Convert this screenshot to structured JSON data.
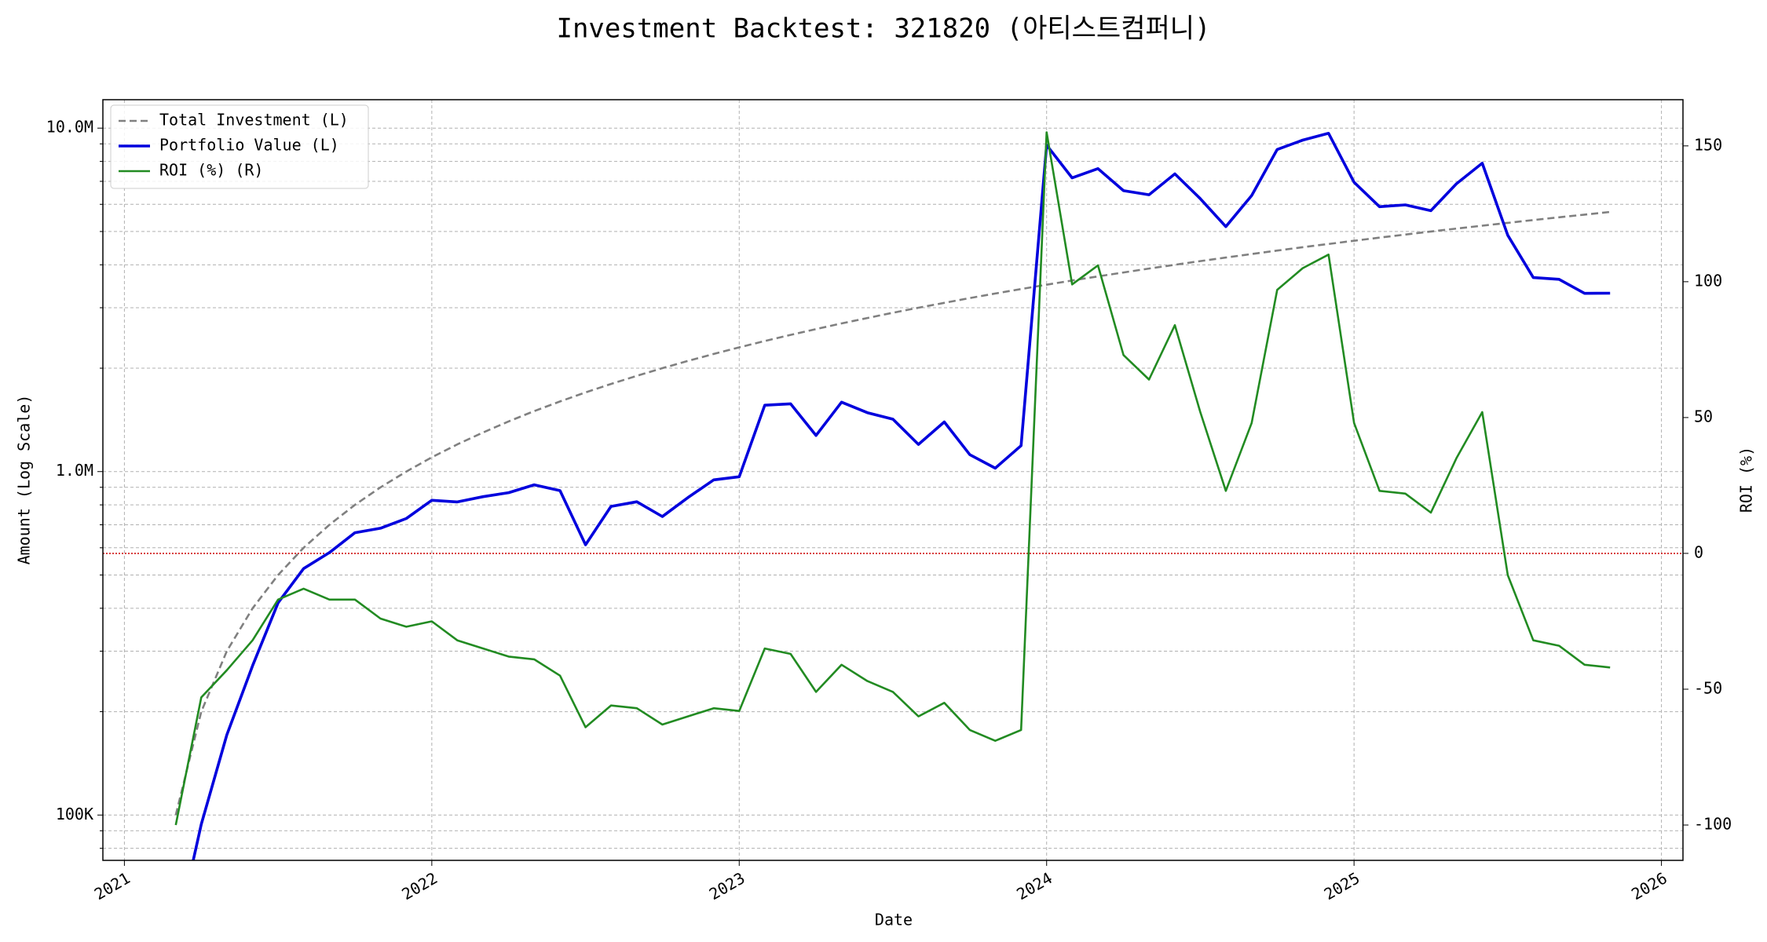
{
  "chart_data": {
    "type": "line",
    "title": "Investment Backtest: 321820 (아티스트컴퍼니)",
    "x_label": "Date",
    "y_label": "Amount (Log Scale)",
    "y2_label": "ROI (%)",
    "y_label_color": "#0000cc",
    "y2_label_color": "#228b22",
    "y_log": true,
    "grid": true,
    "legend": "upper-left",
    "x": [
      2021.167,
      2021.25,
      2021.333,
      2021.417,
      2021.5,
      2021.583,
      2021.667,
      2021.75,
      2021.833,
      2021.917,
      2022,
      2022.083,
      2022.167,
      2022.25,
      2022.333,
      2022.417,
      2022.5,
      2022.583,
      2022.667,
      2022.75,
      2022.833,
      2022.917,
      2023,
      2023.083,
      2023.167,
      2023.25,
      2023.333,
      2023.417,
      2023.5,
      2023.583,
      2023.667,
      2023.75,
      2023.833,
      2023.917,
      2024,
      2024.083,
      2024.167,
      2024.25,
      2024.333,
      2024.417,
      2024.5,
      2024.583,
      2024.667,
      2024.75,
      2024.833,
      2024.917,
      2025,
      2025.083,
      2025.167,
      2025.25,
      2025.333,
      2025.417,
      2025.5,
      2025.583,
      2025.667,
      2025.75,
      2025.833
    ],
    "xlim": [
      2020.93,
      2026.07
    ],
    "xticks": [
      2021,
      2022,
      2023,
      2024,
      2025,
      2026
    ],
    "ylim": [
      73800,
      12100000
    ],
    "yticks": [
      {
        "value": 100000,
        "label": "100K"
      },
      {
        "value": 1000000,
        "label": "1.0M"
      },
      {
        "value": 10000000,
        "label": "10.0M"
      }
    ],
    "yticks_minor": [
      80000,
      90000,
      200000,
      300000,
      400000,
      500000,
      600000,
      700000,
      800000,
      900000,
      2000000,
      3000000,
      4000000,
      5000000,
      6000000,
      7000000,
      8000000,
      9000000
    ],
    "y2lim": [
      -113,
      167
    ],
    "y2ticks": [
      -100,
      -50,
      0,
      50,
      100,
      150
    ],
    "y2_reference_line": {
      "value": 0,
      "color": "#cc0000"
    },
    "series": [
      {
        "name": "Total Investment (L)",
        "color": "#808080",
        "dashed": true,
        "axis": "y",
        "values": [
          100000,
          200000,
          300000,
          400000,
          500000,
          600000,
          700000,
          800000,
          900000,
          1000000,
          1100000,
          1200000,
          1300000,
          1400000,
          1500000,
          1600000,
          1700000,
          1800000,
          1900000,
          2000000,
          2100000,
          2200000,
          2300000,
          2400000,
          2500000,
          2600000,
          2700000,
          2800000,
          2900000,
          3000000,
          3100000,
          3200000,
          3300000,
          3400000,
          3500000,
          3600000,
          3700000,
          3800000,
          3900000,
          4000000,
          4100000,
          4200000,
          4300000,
          4400000,
          4500000,
          4600000,
          4700000,
          4800000,
          4900000,
          5000000,
          5100000,
          5200000,
          5300000,
          5400000,
          5500000,
          5600000,
          5700000
        ]
      },
      {
        "name": "Portfolio Value (L)",
        "color": "#0000dd",
        "dashed": false,
        "axis": "y",
        "values": [
          0,
          94000,
          171000,
          272000,
          415000,
          522000,
          581000,
          664000,
          684000,
          730000,
          825000,
          816000,
          845000,
          868000,
          915000,
          880000,
          612000,
          792000,
          817000,
          740000,
          840000,
          946000,
          966000,
          1560000,
          1575000,
          1274000,
          1593000,
          1484000,
          1421000,
          1200000,
          1395000,
          1120000,
          1023000,
          1190000,
          8925000,
          7164000,
          7622000,
          6574000,
          6396000,
          7360000,
          6232000,
          5166000,
          6364000,
          8668000,
          9225000,
          9660000,
          6956000,
          5904000,
          5978000,
          5750000,
          6885000,
          7904000,
          4876000,
          3672000,
          3630000,
          3304000,
          3306000
        ]
      },
      {
        "name": "ROI (%) (R)",
        "color": "#228b22",
        "dashed": false,
        "axis": "y2",
        "values": [
          -100,
          -53,
          -43,
          -32,
          -17,
          -13,
          -17,
          -17,
          -24,
          -27,
          -25,
          -32,
          -35,
          -38,
          -39,
          -45,
          -64,
          -56,
          -57,
          -63,
          -60,
          -57,
          -58,
          -35,
          -37,
          -51,
          -41,
          -47,
          -51,
          -60,
          -55,
          -65,
          -69,
          -65,
          155,
          99,
          106,
          73,
          64,
          84,
          52,
          23,
          48,
          97,
          105,
          110,
          48,
          23,
          22,
          15,
          35,
          52,
          -8,
          -32,
          -34,
          -41,
          -42
        ]
      }
    ]
  }
}
